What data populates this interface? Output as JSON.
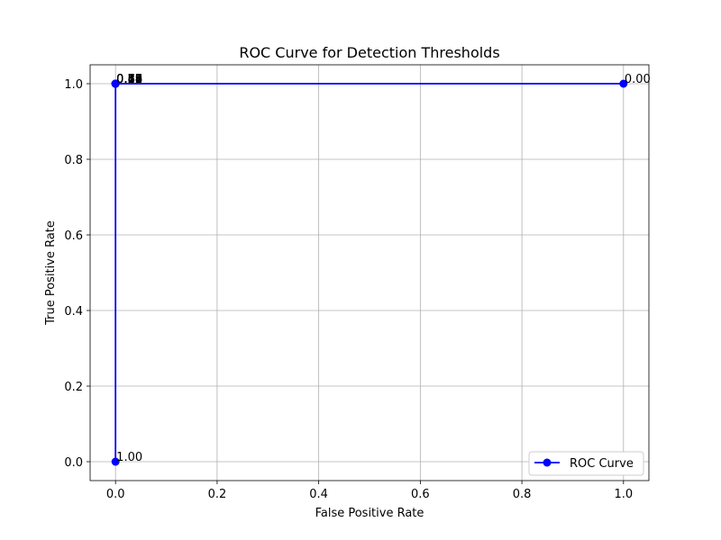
{
  "chart_data": {
    "type": "line",
    "title": "ROC Curve for Detection Thresholds",
    "xlabel": "False Positive Rate",
    "ylabel": "True Positive Rate",
    "xlim": [
      -0.05,
      1.05
    ],
    "ylim": [
      -0.05,
      1.05
    ],
    "xticks": [
      "0.0",
      "0.2",
      "0.4",
      "0.6",
      "0.8",
      "1.0"
    ],
    "yticks": [
      "0.0",
      "0.2",
      "0.4",
      "0.6",
      "0.8",
      "1.0"
    ],
    "grid": true,
    "legend_position": "lower-right",
    "series": [
      {
        "name": "ROC Curve",
        "color": "#0000ff",
        "marker": "circle",
        "points": [
          {
            "x": 0.0,
            "y": 0.0,
            "label": "1.00"
          },
          {
            "x": 0.0,
            "y": 1.0,
            "label": "0.89"
          },
          {
            "x": 0.0,
            "y": 1.0,
            "label": "0.78"
          },
          {
            "x": 0.0,
            "y": 1.0,
            "label": "0.67"
          },
          {
            "x": 0.0,
            "y": 1.0,
            "label": "0.56"
          },
          {
            "x": 0.0,
            "y": 1.0,
            "label": "0.44"
          },
          {
            "x": 0.0,
            "y": 1.0,
            "label": "0.33"
          },
          {
            "x": 0.0,
            "y": 1.0,
            "label": "0.22"
          },
          {
            "x": 0.0,
            "y": 1.0,
            "label": "0.11"
          },
          {
            "x": 1.0,
            "y": 1.0,
            "label": "0.00"
          }
        ]
      }
    ]
  }
}
